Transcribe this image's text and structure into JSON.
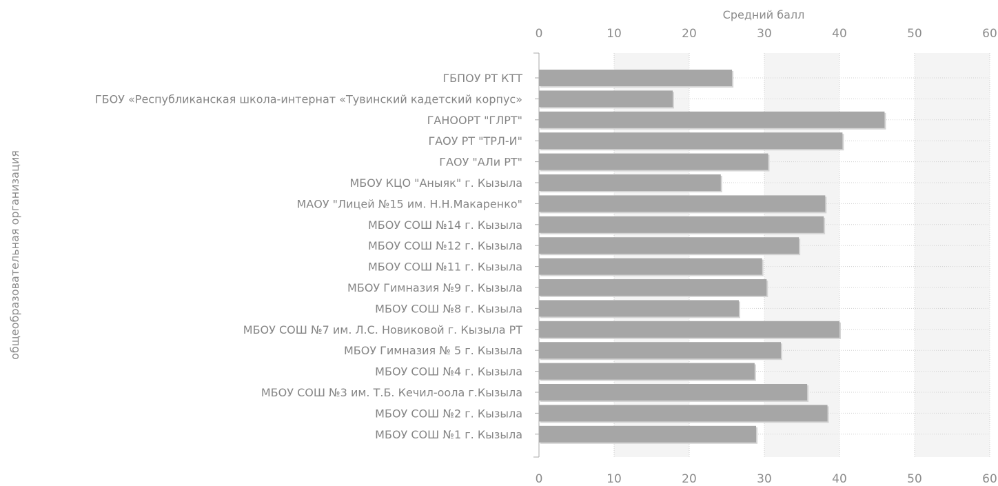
{
  "chart_data": {
    "type": "bar",
    "orientation": "horizontal",
    "xlabel": "Средний балл",
    "ylabel": "общеобразовательная организация",
    "xlim": [
      0,
      60
    ],
    "xticks": [
      0,
      10,
      20,
      30,
      40,
      50,
      60
    ],
    "grid": true,
    "legend": "none",
    "colors": {
      "bar": "#a6a6a6",
      "bar_shadow": "#d4d4d4",
      "band": "#f4f4f4",
      "grid": "#d0d0d0",
      "axis": "#aaaaaa",
      "text": "#858585"
    },
    "categories": [
      "ГБПОУ РТ  КТТ",
      "ГБОУ «Республиканская школа-интернат «Тувинский кадетский корпус»",
      "ГАНООРТ \"ГЛРТ\"",
      "ГАОУ РТ \"ТРЛ-И\"",
      "ГАОУ \"АЛи РТ\"",
      "МБОУ КЦО \"Аныяк\" г. Кызыла",
      "МАОУ \"Лицей №15 им. Н.Н.Макаренко\"",
      "МБОУ СОШ №14 г. Кызыла",
      "МБОУ СОШ №12 г. Кызыла",
      "МБОУ СОШ №11 г. Кызыла",
      "МБОУ Гимназия №9 г. Кызыла",
      "МБОУ СОШ №8 г. Кызыла",
      "МБОУ СОШ №7 им. Л.С. Новиковой г. Кызыла РТ",
      "МБОУ Гимназия № 5 г. Кызыла",
      "МБОУ СОШ №4 г. Кызыла",
      "МБОУ СОШ №3 им. Т.Б. Кечил-оола г.Кызыла",
      "МБОУ СОШ №2 г. Кызыла",
      "МБОУ СОШ №1 г. Кызыла"
    ],
    "values": [
      25.7,
      17.8,
      46.0,
      40.4,
      30.5,
      24.2,
      38.1,
      37.9,
      34.6,
      29.7,
      30.3,
      26.6,
      40.0,
      32.2,
      28.7,
      35.7,
      38.4,
      28.9
    ]
  }
}
